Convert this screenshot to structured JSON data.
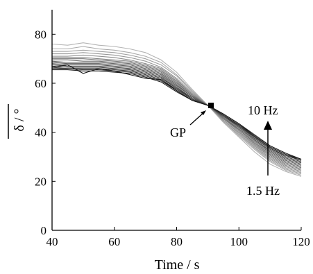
{
  "chart_data": {
    "type": "line",
    "xlabel": "Time / s",
    "ylabel": "δ / °",
    "xlim": [
      40,
      120
    ],
    "ylim": [
      0,
      90
    ],
    "xticks": [
      40,
      60,
      80,
      100,
      120
    ],
    "yticks": [
      0,
      20,
      40,
      60,
      80
    ],
    "grid": false,
    "x": [
      40,
      45,
      50,
      55,
      60,
      65,
      70,
      75,
      80,
      85,
      90,
      95,
      100,
      105,
      110,
      115,
      120
    ],
    "series": [
      {
        "values": [
          76,
          75.5,
          76.5,
          75.5,
          75,
          74,
          72.5,
          69.5,
          64.5,
          57.5,
          51,
          44,
          38,
          32,
          27,
          24,
          22
        ]
      },
      {
        "values": [
          74,
          74,
          75,
          74,
          73.5,
          72.5,
          71,
          68.5,
          63.5,
          57,
          51,
          44.5,
          38.5,
          33,
          28,
          24.5,
          22.5
        ]
      },
      {
        "values": [
          73,
          73,
          73.5,
          73,
          72.5,
          71.5,
          70,
          67.5,
          63,
          56.5,
          51,
          44.5,
          39,
          33.5,
          28.5,
          25,
          23
        ]
      },
      {
        "values": [
          72,
          72,
          72.5,
          72,
          71.5,
          70.5,
          69,
          66.5,
          62,
          56,
          51,
          45,
          39.5,
          34,
          29,
          25.5,
          23.5
        ]
      },
      {
        "values": [
          71,
          71,
          71.5,
          71,
          70.5,
          69.5,
          68,
          66,
          61.5,
          55.5,
          51,
          45,
          40,
          34.5,
          29.5,
          26,
          24
        ]
      },
      {
        "values": [
          70.5,
          70.5,
          70.5,
          70,
          69.5,
          69,
          67.5,
          65.5,
          61,
          55.5,
          51,
          45.5,
          40.5,
          35,
          30,
          26.5,
          24.5
        ]
      },
      {
        "values": [
          70,
          70,
          70,
          69.5,
          69,
          68.5,
          67,
          65,
          60.5,
          55,
          51,
          45.5,
          41,
          35.5,
          30.5,
          27,
          25
        ]
      },
      {
        "values": [
          69.5,
          69.5,
          69,
          69,
          68.5,
          68,
          66.5,
          64.5,
          60,
          55,
          51,
          46,
          41,
          36,
          31,
          27.5,
          25.5
        ]
      },
      {
        "values": [
          69,
          68.5,
          68.5,
          68.5,
          68,
          67.5,
          66,
          64,
          59.5,
          54.5,
          51,
          46,
          41.5,
          36.5,
          31.5,
          28,
          26
        ]
      },
      {
        "values": [
          68.5,
          68,
          68,
          68,
          67.5,
          67,
          65.5,
          63.5,
          59,
          54.5,
          51,
          46.5,
          42,
          37,
          32,
          28.5,
          26.5
        ]
      },
      {
        "values": [
          68,
          67.5,
          67.5,
          67.5,
          67,
          66.5,
          65,
          63,
          58.5,
          54,
          51,
          46.5,
          42,
          37,
          32.5,
          29,
          27
        ]
      },
      {
        "values": [
          67.5,
          67,
          67,
          67,
          66.5,
          66,
          64.5,
          62.5,
          58,
          54,
          51,
          46.5,
          42.5,
          37.5,
          33,
          29.5,
          27.5
        ]
      },
      {
        "values": [
          67,
          66.5,
          66.5,
          66.5,
          66,
          65.5,
          64,
          62,
          58,
          53.5,
          51,
          47,
          42.5,
          38,
          33.5,
          30,
          28
        ]
      },
      {
        "values": [
          66.5,
          66,
          66,
          66,
          65.5,
          65,
          63.5,
          61.5,
          57.5,
          53.5,
          51,
          47,
          43,
          38,
          33.5,
          30.5,
          28.5
        ]
      },
      {
        "values": [
          66,
          66,
          65.5,
          65.5,
          65,
          64.5,
          63,
          61,
          57,
          53,
          51,
          47,
          43,
          38.5,
          34,
          31,
          28.5
        ]
      },
      {
        "values": [
          65.5,
          65.5,
          65,
          65,
          64.5,
          64,
          62.5,
          60.5,
          56.5,
          53,
          51,
          47.5,
          43.5,
          38.5,
          34,
          31,
          29
        ]
      },
      {
        "values": [
          66.5,
          67.5,
          64,
          66,
          65,
          63.5,
          62,
          61.5,
          57,
          53,
          51,
          47.5,
          43.5,
          39,
          34.5,
          31.5,
          29
        ]
      }
    ],
    "annotations": [
      {
        "text": "GP",
        "x": 91,
        "y": 51
      },
      {
        "text": "10 Hz"
      },
      {
        "text": "1.5 Hz"
      }
    ]
  },
  "colors": {
    "series_light": "#b4b4b4",
    "series_dark": "#1a1a1a",
    "axis": "#000000"
  }
}
